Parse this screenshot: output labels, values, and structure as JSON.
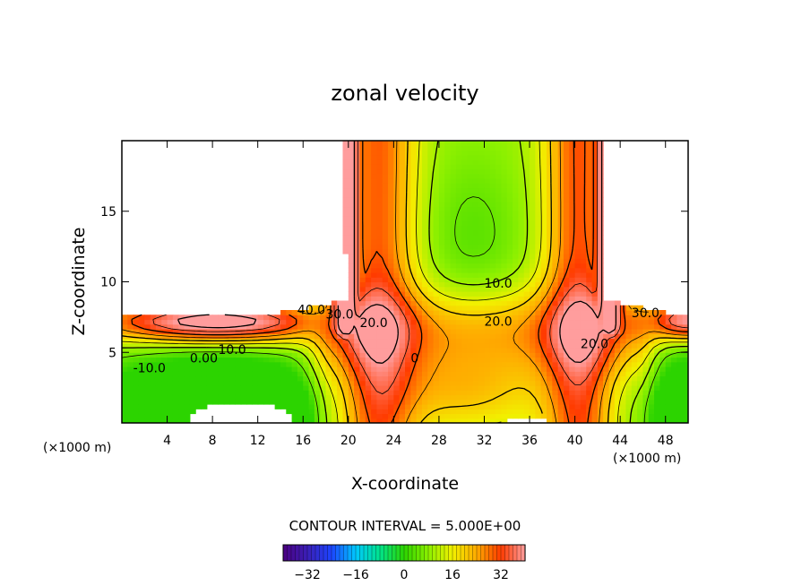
{
  "chart_data": {
    "type": "heatmap",
    "title": "zonal velocity",
    "xlabel": "X-coordinate",
    "ylabel": "Z-coordinate",
    "x_unit": "(×1000 m)",
    "x_unit_right": "(×1000 m)",
    "xlim": [
      0,
      50
    ],
    "ylim": [
      0,
      20
    ],
    "x_ticks": [
      4,
      8,
      12,
      16,
      20,
      24,
      28,
      32,
      36,
      40,
      44,
      48
    ],
    "y_ticks": [
      5,
      10,
      15
    ],
    "contour_interval_text": "CONTOUR INTERVAL = 5.000E+00",
    "contour_interval": 5.0,
    "contour_labels": [
      {
        "text": "40.0",
        "x": 15.5,
        "y": 7.7
      },
      {
        "text": "30.0",
        "x": 18.0,
        "y": 7.4
      },
      {
        "text": "20.0",
        "x": 21.0,
        "y": 6.8
      },
      {
        "text": "10.0",
        "x": 8.5,
        "y": 4.9
      },
      {
        "text": "0.00",
        "x": 6.0,
        "y": 4.3
      },
      {
        "text": "-10.0",
        "x": 1.0,
        "y": 3.6
      },
      {
        "text": "0",
        "x": 25.5,
        "y": 4.3
      },
      {
        "text": "10.0",
        "x": 32.0,
        "y": 9.6
      },
      {
        "text": "20.0",
        "x": 32.0,
        "y": 6.9
      },
      {
        "text": "20.0",
        "x": 40.5,
        "y": 5.3
      },
      {
        "text": "30.0",
        "x": 45.0,
        "y": 7.5
      }
    ],
    "colorbar": {
      "range": [
        -40,
        40
      ],
      "ticks": [
        -32,
        -16,
        0,
        16,
        32
      ],
      "tick_labels": [
        "−32",
        "−16",
        "0",
        "16",
        "32"
      ]
    }
  }
}
